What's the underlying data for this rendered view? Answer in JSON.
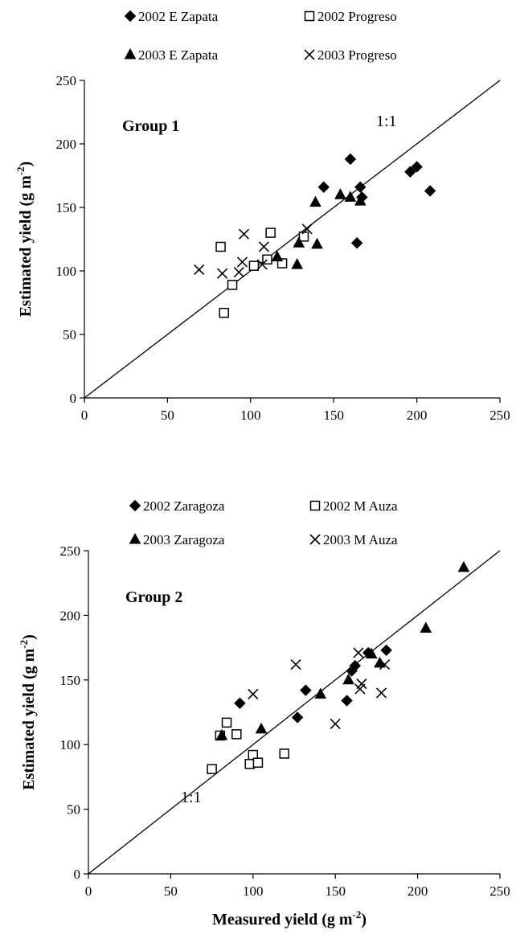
{
  "chart_data": [
    {
      "type": "scatter",
      "title": "",
      "annotation": "Group 1",
      "line_label": "1:1",
      "xlabel": "",
      "ylabel_main": "Estimated yield (g m",
      "ylabel_sup": "-2",
      "ylabel_end": ")",
      "xlim": [
        0,
        250
      ],
      "ylim": [
        0,
        250
      ],
      "xticks": [
        0,
        50,
        100,
        150,
        200,
        250
      ],
      "yticks": [
        0,
        50,
        100,
        150,
        200,
        250
      ],
      "grid": false,
      "legend_position": "top",
      "reference_line": [
        [
          0,
          0
        ],
        [
          250,
          250
        ]
      ],
      "series": [
        {
          "name": "2002 E Zapata",
          "marker": "diamond",
          "points": [
            [
              160,
              188
            ],
            [
              144,
              166
            ],
            [
              166,
              166
            ],
            [
              167,
              158
            ],
            [
              164,
              122
            ],
            [
              196,
              178
            ],
            [
              200,
              182
            ],
            [
              208,
              163
            ]
          ]
        },
        {
          "name": "2002 Progreso",
          "marker": "square-open",
          "points": [
            [
              82,
              119
            ],
            [
              84,
              67
            ],
            [
              89,
              89
            ],
            [
              102,
              104
            ],
            [
              110,
              109
            ],
            [
              112,
              130
            ],
            [
              119,
              106
            ],
            [
              132,
              127
            ]
          ]
        },
        {
          "name": "2003 E Zapata",
          "marker": "triangle",
          "points": [
            [
              116,
              111
            ],
            [
              128,
              105
            ],
            [
              129,
              122
            ],
            [
              139,
              154
            ],
            [
              140,
              121
            ],
            [
              154,
              160
            ],
            [
              160,
              158
            ],
            [
              166,
              155
            ]
          ]
        },
        {
          "name": "2003 Progreso",
          "marker": "x",
          "points": [
            [
              69,
              101
            ],
            [
              83,
              98
            ],
            [
              93,
              99
            ],
            [
              95,
              107
            ],
            [
              96,
              129
            ],
            [
              107,
              105
            ],
            [
              108,
              119
            ],
            [
              134,
              133
            ]
          ]
        }
      ]
    },
    {
      "type": "scatter",
      "title": "",
      "annotation": "Group 2",
      "line_label": "1:1",
      "xlabel_main": "Measured yield (g m",
      "xlabel_sup": "-2",
      "xlabel_end": ")",
      "ylabel_main": "Estimated yield (g m",
      "ylabel_sup": "-2",
      "ylabel_end": ")",
      "xlim": [
        0,
        250
      ],
      "ylim": [
        0,
        250
      ],
      "xticks": [
        0,
        50,
        100,
        150,
        200,
        250
      ],
      "yticks": [
        0,
        50,
        100,
        150,
        200,
        250
      ],
      "grid": false,
      "legend_position": "top",
      "reference_line": [
        [
          0,
          0
        ],
        [
          250,
          250
        ]
      ],
      "series": [
        {
          "name": "2002 Zaragoza",
          "marker": "diamond",
          "points": [
            [
              92,
              132
            ],
            [
              127,
              121
            ],
            [
              132,
              142
            ],
            [
              157,
              134
            ],
            [
              160,
              157
            ],
            [
              162,
              161
            ],
            [
              170,
              171
            ],
            [
              181,
              173
            ]
          ]
        },
        {
          "name": "2002 M Auza",
          "marker": "square-open",
          "points": [
            [
              75,
              81
            ],
            [
              80,
              107
            ],
            [
              84,
              117
            ],
            [
              90,
              108
            ],
            [
              98,
              85
            ],
            [
              100,
              92
            ],
            [
              103,
              86
            ],
            [
              119,
              93
            ]
          ]
        },
        {
          "name": "2003 Zaragoza",
          "marker": "triangle",
          "points": [
            [
              81,
              107
            ],
            [
              105,
              112
            ],
            [
              141,
              139
            ],
            [
              158,
              150
            ],
            [
              172,
              170
            ],
            [
              177,
              163
            ],
            [
              205,
              190
            ],
            [
              228,
              237
            ]
          ]
        },
        {
          "name": "2003 M Auza",
          "marker": "x",
          "points": [
            [
              100,
              139
            ],
            [
              126,
              162
            ],
            [
              150,
              116
            ],
            [
              164,
              171
            ],
            [
              165,
              143
            ],
            [
              166,
              147
            ],
            [
              178,
              140
            ],
            [
              180,
              162
            ]
          ]
        }
      ]
    }
  ]
}
